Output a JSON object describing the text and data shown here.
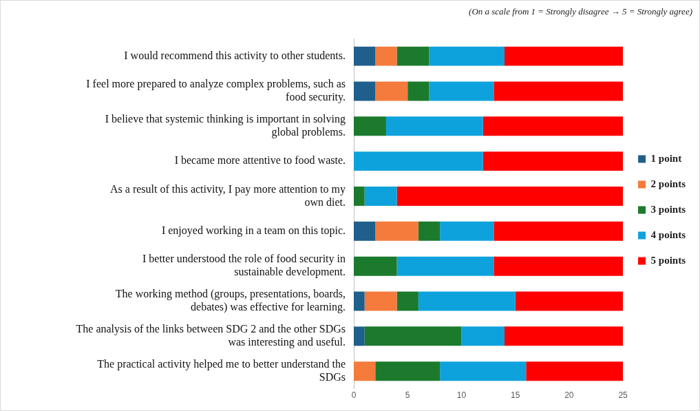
{
  "chart_data": {
    "type": "bar",
    "orientation": "horizontal",
    "stacked": true,
    "categories": [
      "I would recommend this activity to other students.",
      "I feel more prepared to analyze complex problems, such as food security.",
      "I believe that systemic thinking is important in solving global problems.",
      "I became more attentive to food waste.",
      "As a result of this activity, I pay more attention to my own diet.",
      "I enjoyed working in a team on this topic.",
      "I better understood the role of food security in sustainable development.",
      "The working method (groups, presentations, boards, debates) was effective for learning.",
      "The analysis of the links between SDG 2 and the other SDGs was interesting and useful.",
      "The practical activity helped me to better understand the SDGs"
    ],
    "series": [
      {
        "name": "1 point",
        "color": "#1f5f8b",
        "values": [
          2,
          2,
          0,
          0,
          0,
          2,
          0,
          1,
          1,
          0
        ]
      },
      {
        "name": "2 points",
        "color": "#f47b3c",
        "values": [
          2,
          3,
          0,
          0,
          0,
          4,
          0,
          3,
          0,
          2
        ]
      },
      {
        "name": "3 points",
        "color": "#1b7a2c",
        "values": [
          3,
          2,
          3,
          0,
          1,
          2,
          4,
          2,
          9,
          6
        ]
      },
      {
        "name": "4 points",
        "color": "#0ea2dc",
        "values": [
          7,
          6,
          9,
          12,
          3,
          5,
          9,
          9,
          4,
          8
        ]
      },
      {
        "name": "5 points",
        "color": "#ff0000",
        "values": [
          11,
          12,
          13,
          13,
          21,
          12,
          12,
          10,
          11,
          9
        ]
      }
    ],
    "xlim": [
      0,
      25
    ],
    "xticks": [
      0,
      5,
      10,
      15,
      20,
      25
    ],
    "grid": false,
    "legend": "right",
    "annotations": [
      "(On a scale from 1 = Strongly disagree → 5 = Strongly agree)"
    ]
  }
}
